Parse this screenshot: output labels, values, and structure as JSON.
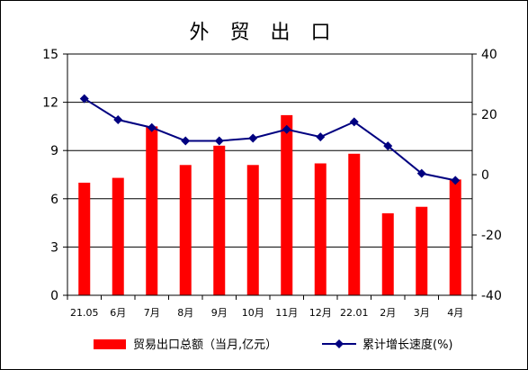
{
  "chart_data": {
    "type": "bar+line",
    "title": "外 贸 出 口",
    "categories": [
      "21.05",
      "6月",
      "7月",
      "8月",
      "9月",
      "10月",
      "11月",
      "12月",
      "22.01",
      "2月",
      "3月",
      "4月"
    ],
    "series": [
      {
        "name": "贸易出口总额（当月,亿元）",
        "type": "bar",
        "axis": "left",
        "color": "#ff0000",
        "values": [
          7.0,
          7.3,
          10.5,
          8.1,
          9.3,
          8.1,
          11.2,
          8.2,
          8.8,
          5.1,
          5.5,
          7.2
        ]
      },
      {
        "name": "累计增长速度(%)",
        "type": "line",
        "axis": "right",
        "color": "#000080",
        "values": [
          25.2,
          18.2,
          15.6,
          11.2,
          11.2,
          12.1,
          15.0,
          12.5,
          17.5,
          9.5,
          0.4,
          -1.9
        ]
      }
    ],
    "y_left": {
      "min": 0,
      "max": 15,
      "ticks": [
        0,
        3,
        6,
        9,
        12,
        15
      ]
    },
    "y_right": {
      "min": -40,
      "max": 40,
      "ticks": [
        -40,
        -20,
        0,
        20,
        40
      ]
    },
    "grid": true,
    "legend_position": "bottom"
  }
}
